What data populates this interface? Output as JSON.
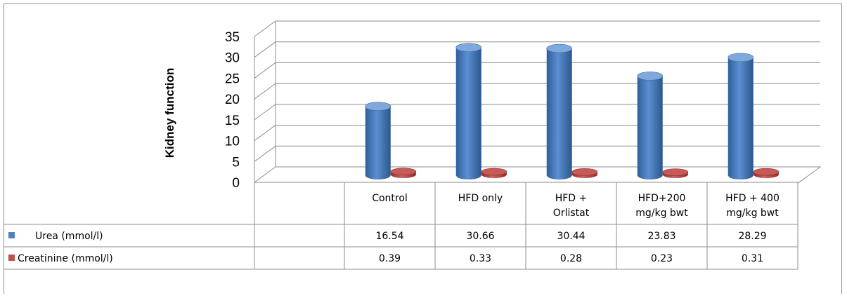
{
  "chart_data": {
    "type": "bar",
    "ylabel": "Kidney function",
    "ylim": [
      0,
      35
    ],
    "yticks": [
      0,
      5,
      10,
      15,
      20,
      25,
      30,
      35
    ],
    "grid": true,
    "categories": [
      [
        "Control"
      ],
      [
        "HFD only"
      ],
      [
        "HFD +",
        "Orlistat"
      ],
      [
        "HFD+200",
        "mg/kg bwt"
      ],
      [
        "HFD + 400",
        "mg/kg bwt"
      ]
    ],
    "series": [
      {
        "name": "Urea (mmol/l)",
        "values": [
          16.54,
          30.66,
          30.44,
          23.83,
          28.29
        ],
        "color": "#4f81bd"
      },
      {
        "name": "Creatinine (mmol/l)",
        "values": [
          0.39,
          0.33,
          0.28,
          0.23,
          0.31
        ],
        "color": "#c0504d"
      }
    ],
    "data_table_values": [
      [
        "16.54",
        "30.66",
        "30.44",
        "23.83",
        "28.29"
      ],
      [
        "0.39",
        "0.33",
        "0.28",
        "0.23",
        "0.31"
      ]
    ]
  }
}
